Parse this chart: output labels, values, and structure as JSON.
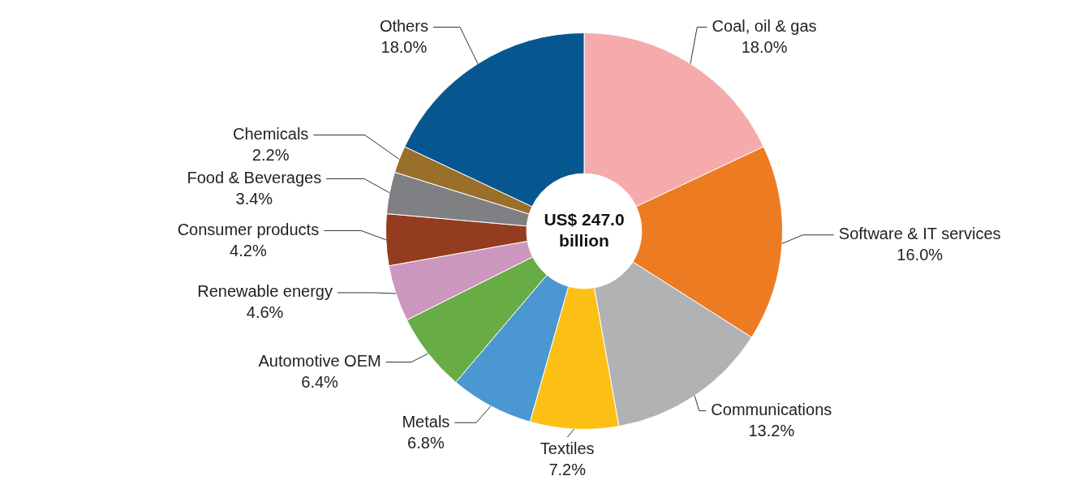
{
  "chart_data": {
    "type": "donut",
    "categories": [
      "Coal, oil & gas",
      "Software & IT services",
      "Communications",
      "Textiles",
      "Metals",
      "Automotive OEM",
      "Renewable energy",
      "Consumer products",
      "Food & Beverages",
      "Chemicals",
      "Others"
    ],
    "values": [
      18.0,
      16.0,
      13.2,
      7.2,
      6.8,
      6.4,
      4.6,
      4.2,
      3.4,
      2.2,
      18.0
    ],
    "value_labels": [
      "18.0%",
      "16.0%",
      "13.2%",
      "7.2%",
      "6.8%",
      "6.4%",
      "4.6%",
      "4.2%",
      "3.4%",
      "2.2%",
      "18.0%"
    ],
    "colors": [
      "#f5aaac",
      "#ed7b22",
      "#b1b2b4",
      "#fcbf14",
      "#4b97d2",
      "#68ac45",
      "#cc97be",
      "#943c1f",
      "#7f8083",
      "#996f29",
      "#06578f"
    ],
    "annotations": [
      "US$ 247.0 billion"
    ],
    "legend": false
  }
}
